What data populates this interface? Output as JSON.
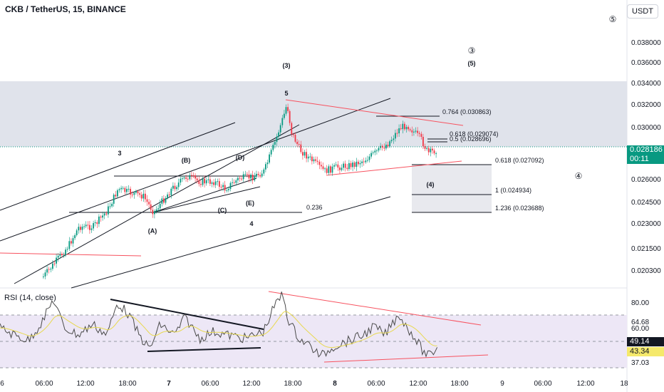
{
  "header": {
    "title": "CKB / TetherUS, 15, BINANCE",
    "currency_button": "USDT"
  },
  "rsi": {
    "title": "RSI (14, close)",
    "value_purple": "49.14",
    "value_yellow": "43.34"
  },
  "last_price": {
    "value": "0.028186",
    "countdown": "00:11"
  },
  "colors": {
    "up": "#089981",
    "down": "#f23645",
    "rsi": "#4a4a4a",
    "rsi_ma": "#e8d94f",
    "zone": "#e0e3eb",
    "rsi_band": "#ede7f6",
    "trend": "#131722",
    "pink": "#f7525f"
  },
  "chart_data": {
    "type": "candlestick",
    "price_axis": {
      "ticks": [
        "0.038000",
        "0.036000",
        "0.034000",
        "0.032000",
        "0.030000",
        "0.026000",
        "0.024500",
        "0.023000",
        "0.021500",
        "0.020300"
      ]
    },
    "time_axis": {
      "ticks": [
        "6",
        "06:00",
        "12:00",
        "18:00",
        "7",
        "06:00",
        "12:00",
        "18:00",
        "8",
        "06:00",
        "12:00",
        "18:00",
        "9",
        "06:00",
        "12:00",
        "18"
      ]
    },
    "rsi_axis": {
      "ticks": [
        "80.00",
        "64.68",
        "60.00",
        "37.03"
      ]
    },
    "wave_labels": [
      "(3)",
      "5",
      "3",
      "(B)",
      "(D)",
      "(C)",
      "(E)",
      "(A)",
      "4",
      "(4)",
      "(5)",
      "③",
      "④",
      "⑤"
    ],
    "fib_labels": [
      "0.764 (0.030863)",
      "0.618 (0.029074)",
      "0.5 (0.028696)",
      "0.618 (0.027092)",
      "1 (0.024934)",
      "1.236 (0.023688)",
      "0.236"
    ]
  }
}
